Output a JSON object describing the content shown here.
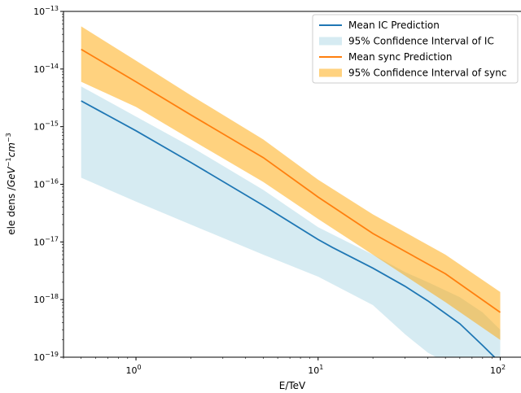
{
  "chart_data": {
    "type": "line",
    "title": "",
    "xlabel": "E/TeV",
    "ylabel": "ele dens /GeV^-1 cm^-3",
    "x_scale": "log",
    "y_scale": "log",
    "xlim": [
      0.4,
      130
    ],
    "ylim": [
      1e-19,
      1e-13
    ],
    "grid": false,
    "legend_position": "top-right",
    "x_ticks": [
      {
        "value": 1,
        "label": "10",
        "exp": "0"
      },
      {
        "value": 10,
        "label": "10",
        "exp": "1"
      },
      {
        "value": 100,
        "label": "10",
        "exp": "2"
      }
    ],
    "y_ticks": [
      {
        "value": 1e-19,
        "label": "10",
        "exp": "−19"
      },
      {
        "value": 1e-18,
        "label": "10",
        "exp": "−18"
      },
      {
        "value": 1e-17,
        "label": "10",
        "exp": "−17"
      },
      {
        "value": 1e-16,
        "label": "10",
        "exp": "−16"
      },
      {
        "value": 1e-15,
        "label": "10",
        "exp": "−15"
      },
      {
        "value": 1e-14,
        "label": "10",
        "exp": "−14"
      },
      {
        "value": 1e-13,
        "label": "10",
        "exp": "−13"
      }
    ],
    "series": [
      {
        "name": "Mean IC Prediction",
        "kind": "line",
        "color": "#1f77b4",
        "x": [
          0.5,
          1,
          2,
          5,
          10,
          12,
          20,
          30,
          40,
          60,
          80,
          100
        ],
        "y": [
          2.8e-15,
          8.5e-16,
          2.4e-16,
          4.3e-17,
          1.1e-17,
          8e-18,
          3.5e-18,
          1.7e-18,
          9.5e-19,
          3.8e-19,
          1.6e-19,
          8e-20
        ]
      },
      {
        "name": "95% Confidence Interval of IC",
        "kind": "band",
        "color": "#add8e6",
        "x": [
          0.5,
          1,
          2,
          5,
          10,
          20,
          30,
          40,
          60,
          80,
          100
        ],
        "upper": [
          5e-15,
          1.5e-15,
          4.5e-16,
          8e-17,
          1.8e-17,
          6e-18,
          3e-18,
          2e-18,
          1.1e-18,
          6e-19,
          3e-19
        ],
        "lower": [
          1.3e-16,
          5e-17,
          2e-17,
          6e-18,
          2.5e-18,
          8e-19,
          2.5e-19,
          1.2e-19,
          6e-20,
          3e-20,
          1.5e-20
        ]
      },
      {
        "name": "Mean sync Prediction",
        "kind": "line",
        "color": "#ff7f0e",
        "x": [
          0.5,
          1,
          2,
          5,
          10,
          20,
          50,
          100
        ],
        "y": [
          2.2e-14,
          6e-15,
          1.6e-15,
          2.9e-16,
          6e-17,
          1.4e-17,
          2.8e-18,
          6e-19
        ]
      },
      {
        "name": "95% Confidence Interval of sync",
        "kind": "band",
        "color": "#ffa500",
        "x": [
          0.5,
          1,
          2,
          5,
          10,
          20,
          50,
          100
        ],
        "upper": [
          5.5e-14,
          1.4e-14,
          3.5e-15,
          6e-16,
          1.2e-16,
          3e-17,
          6e-18,
          1.35e-18
        ],
        "lower": [
          6e-15,
          2.2e-15,
          6e-16,
          1.1e-16,
          2.5e-17,
          6e-18,
          9e-19,
          2e-19
        ]
      }
    ]
  }
}
